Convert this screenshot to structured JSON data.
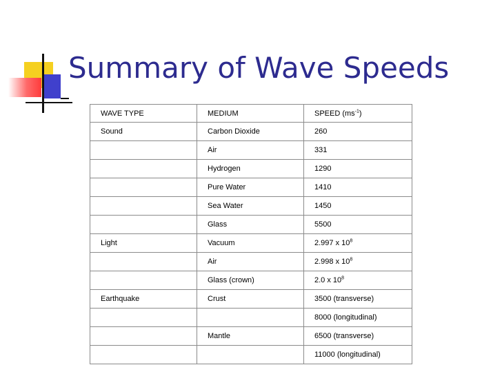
{
  "title": "Summary of Wave Speeds",
  "table": {
    "headers": {
      "wave_type": "WAVE TYPE",
      "medium": "MEDIUM",
      "speed_label": "SPEED (ms",
      "speed_exp": "-1",
      "speed_close": ")"
    },
    "rows": [
      {
        "wave": "Sound",
        "medium": "Carbon Dioxide",
        "speed": "260",
        "exp": ""
      },
      {
        "wave": "",
        "medium": "Air",
        "speed": "331",
        "exp": ""
      },
      {
        "wave": "",
        "medium": "Hydrogen",
        "speed": "1290",
        "exp": ""
      },
      {
        "wave": "",
        "medium": "Pure Water",
        "speed": "1410",
        "exp": ""
      },
      {
        "wave": "",
        "medium": "Sea Water",
        "speed": "1450",
        "exp": ""
      },
      {
        "wave": "",
        "medium": "Glass",
        "speed": "5500",
        "exp": ""
      },
      {
        "wave": "Light",
        "medium": "Vacuum",
        "speed": "2.997 x 10",
        "exp": "8"
      },
      {
        "wave": "",
        "medium": "Air",
        "speed": "2.998 x 10",
        "exp": "8"
      },
      {
        "wave": "",
        "medium": "Glass (crown)",
        "speed": "2.0 x 10",
        "exp": "8"
      },
      {
        "wave": "Earthquake",
        "medium": "Crust",
        "speed": "3500 (transverse)",
        "exp": ""
      },
      {
        "wave": "",
        "medium": "",
        "speed": "8000 (longitudinal)",
        "exp": ""
      },
      {
        "wave": "",
        "medium": "Mantle",
        "speed": "6500 (transverse)",
        "exp": ""
      },
      {
        "wave": "",
        "medium": "",
        "speed": "11000 (longitudinal)",
        "exp": ""
      }
    ]
  },
  "colors": {
    "title": "#2d2b8f",
    "logo_yellow": "#f5d020",
    "logo_red": "#ff3b3b",
    "logo_blue": "#4040cc",
    "table_border": "#8a8a8a"
  }
}
